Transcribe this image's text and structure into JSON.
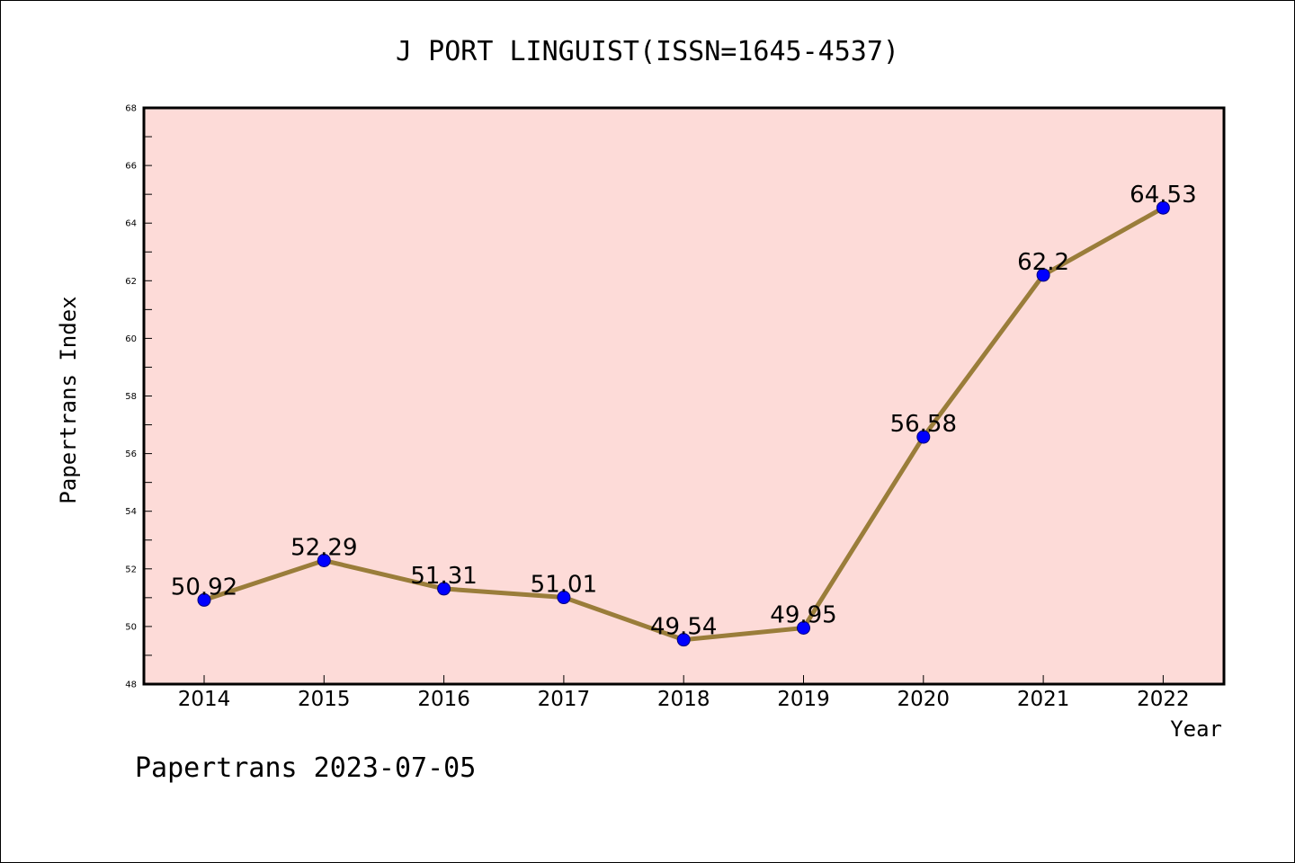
{
  "chart_data": {
    "type": "line",
    "title": "J PORT LINGUIST(ISSN=1645-4537)",
    "xlabel": "Year",
    "ylabel": "Papertrans Index",
    "categories": [
      "2014",
      "2015",
      "2016",
      "2017",
      "2018",
      "2019",
      "2020",
      "2021",
      "2022"
    ],
    "series": [
      {
        "name": "Papertrans Index",
        "values": [
          50.92,
          52.29,
          51.31,
          51.01,
          49.54,
          49.95,
          56.58,
          62.2,
          64.53
        ],
        "labels": [
          "50.92",
          "52.29",
          "51.31",
          "51.01",
          "49.54",
          "49.95",
          "56.58",
          "62.2",
          "64.53"
        ]
      }
    ],
    "ylim": [
      48,
      68
    ],
    "yticks": [
      "48",
      "50",
      "52",
      "54",
      "56",
      "58",
      "60",
      "62",
      "64",
      "66",
      "68"
    ],
    "grid": false,
    "colors": {
      "plot_background": "#fddbd8",
      "line": "#9a7d3a",
      "marker": "#0000ff",
      "marker_edge": "#00007a",
      "axes": "#000000"
    },
    "footer": "Papertrans 2023-07-05"
  }
}
